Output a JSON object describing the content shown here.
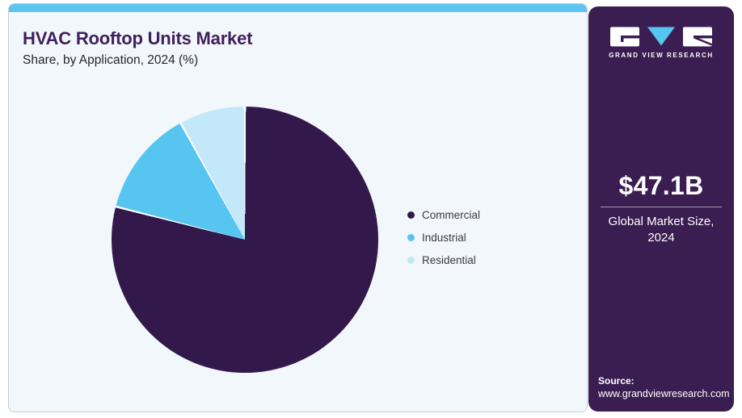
{
  "header": {
    "title": "HVAC Rooftop Units Market",
    "subtitle": "Share, by Application, 2024 (%)"
  },
  "chart_data": {
    "type": "pie",
    "title": "HVAC Rooftop Units Market Share, by Application, 2024 (%)",
    "labels": [
      "Commercial",
      "Industrial",
      "Residential"
    ],
    "values": [
      79,
      13,
      8
    ],
    "unit": "%",
    "colors": [
      "#33194b",
      "#56c5f0",
      "#c3e8f9"
    ],
    "slice_border_color": "#ffffff",
    "start_angle_deg": 0,
    "direction": "clockwise",
    "legend_position": "right"
  },
  "sidebar": {
    "logo_text": "GRAND VIEW RESEARCH",
    "market_size": "$47.1B",
    "market_size_label_line1": "Global Market Size,",
    "market_size_label_line2": "2024",
    "source_label": "Source:",
    "source_url": "www.grandviewresearch.com",
    "colors": {
      "background": "#3a1d51",
      "logo_triangle_blue": "#56c5f0"
    }
  },
  "theme": {
    "accent_bar": "#5cc6f0",
    "card_background": "#f2f7fb",
    "card_border": "#c6ccd5",
    "title_color": "#3f1f5c"
  }
}
